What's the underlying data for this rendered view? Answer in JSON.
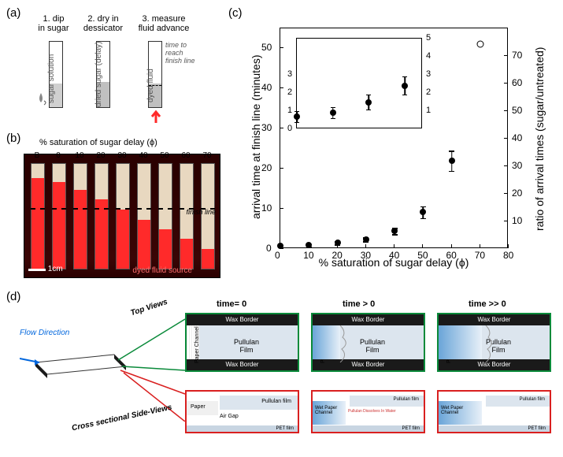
{
  "panels": {
    "a": {
      "label": "(a)"
    },
    "b": {
      "label": "(b)"
    },
    "c": {
      "label": "(c)"
    },
    "d": {
      "label": "(d)"
    }
  },
  "panel_a": {
    "steps": [
      {
        "num": "1.",
        "text": "dip\nin sugar"
      },
      {
        "num": "2.",
        "text": "dry in\ndessicator"
      },
      {
        "num": "3.",
        "text": "measure\nfluid advance"
      }
    ],
    "strip_labels": [
      "sugar solution",
      "dried sugar (delay)",
      "dyed fluid"
    ],
    "annotations": {
      "time_to_reach": "time to\nreach\nfinish line"
    },
    "fill_colors": {
      "solution": "#d0d0d0",
      "dried": "#c0c0c0",
      "dyed": "#ff2a2a"
    }
  },
  "panel_b": {
    "title": "% saturation of sugar delay (ϕ)",
    "column_labels": [
      "B",
      "0",
      "10",
      "20",
      "30",
      "40",
      "50",
      "60",
      "70"
    ],
    "fill_heights": [
      115,
      110,
      100,
      88,
      75,
      62,
      50,
      38,
      25
    ],
    "finish_y": 68,
    "finish_label": "finish line",
    "scale_label": "1cm",
    "source_label": "dyed fluid source",
    "bg_color": "#2a0000",
    "strip_color": "#e8d8c0",
    "fill_color": "#ff2a2a"
  },
  "panel_c": {
    "type": "scatter",
    "x_label": "% saturation of sugar delay (ϕ)",
    "y_label_left": "arrival time at finish line (minutes)",
    "y_label_right": "ratio of arrival times (sugar/untreated)",
    "xlim": [
      0,
      80
    ],
    "ylim_left": [
      0,
      55
    ],
    "ylim_right": [
      0,
      80
    ],
    "xticks": [
      0,
      10,
      20,
      30,
      40,
      50,
      60,
      70,
      80
    ],
    "yticks_left": [
      0,
      10,
      20,
      30,
      40,
      50
    ],
    "yticks_right": [
      10,
      20,
      30,
      40,
      50,
      60,
      70
    ],
    "data": [
      {
        "x": 0,
        "y": 0.7,
        "err": 0.3,
        "open": false
      },
      {
        "x": 10,
        "y": 0.9,
        "err": 0.3,
        "open": false
      },
      {
        "x": 20,
        "y": 1.5,
        "err": 0.4,
        "open": false
      },
      {
        "x": 30,
        "y": 2.4,
        "err": 0.5,
        "open": false
      },
      {
        "x": 40,
        "y": 4.5,
        "err": 0.8,
        "open": false
      },
      {
        "x": 50,
        "y": 9.2,
        "err": 1.5,
        "open": false
      },
      {
        "x": 60,
        "y": 22.0,
        "err": 2.5,
        "open": false
      },
      {
        "x": 70,
        "y": 51.0,
        "err": 0,
        "open": true
      }
    ],
    "inset": {
      "xlim": [
        0,
        35
      ],
      "ylim": [
        0,
        5
      ],
      "yticks": [
        0,
        1,
        2,
        3
      ],
      "yticks_right": [
        1,
        2,
        3,
        4,
        5
      ],
      "data": [
        {
          "x": 0,
          "y": 0.7,
          "err": 0.3
        },
        {
          "x": 10,
          "y": 0.9,
          "err": 0.3
        },
        {
          "x": 20,
          "y": 1.5,
          "err": 0.4
        },
        {
          "x": 30,
          "y": 2.4,
          "err": 0.5
        }
      ]
    },
    "marker_color": "#000000",
    "background": "#ffffff"
  },
  "panel_d": {
    "times": [
      "time= 0",
      "time > 0",
      "time >> 0"
    ],
    "flow_label": "Flow Direction",
    "top_label": "Top Views",
    "side_label": "Cross sectional Side-Views",
    "wax_text": "Wax Border",
    "pullulan_text": "Pullulan\nFilm",
    "pullulan_side": "Pullulan film",
    "paper_channel": "Paper Channel",
    "paper_side": "Paper",
    "wet_paper": "Wet Paper\nChannel",
    "air_gap": "Air Gap",
    "pet_film": "PET film",
    "dissolves": "Pullulan Dissolves In Water",
    "colors": {
      "wax": "#1a1a1a",
      "paper_dry": "#f5f5f0",
      "paper_wet": "#8db8e0",
      "wet_gradient_start": "#6aa5d8",
      "wet_gradient_end": "#e8f0f8",
      "pullulan": "#dce5ee",
      "pet": "#c8d5e2",
      "top_border": "#0a8a3a",
      "side_border": "#d92020",
      "flow_arrow": "#0066dd"
    }
  }
}
